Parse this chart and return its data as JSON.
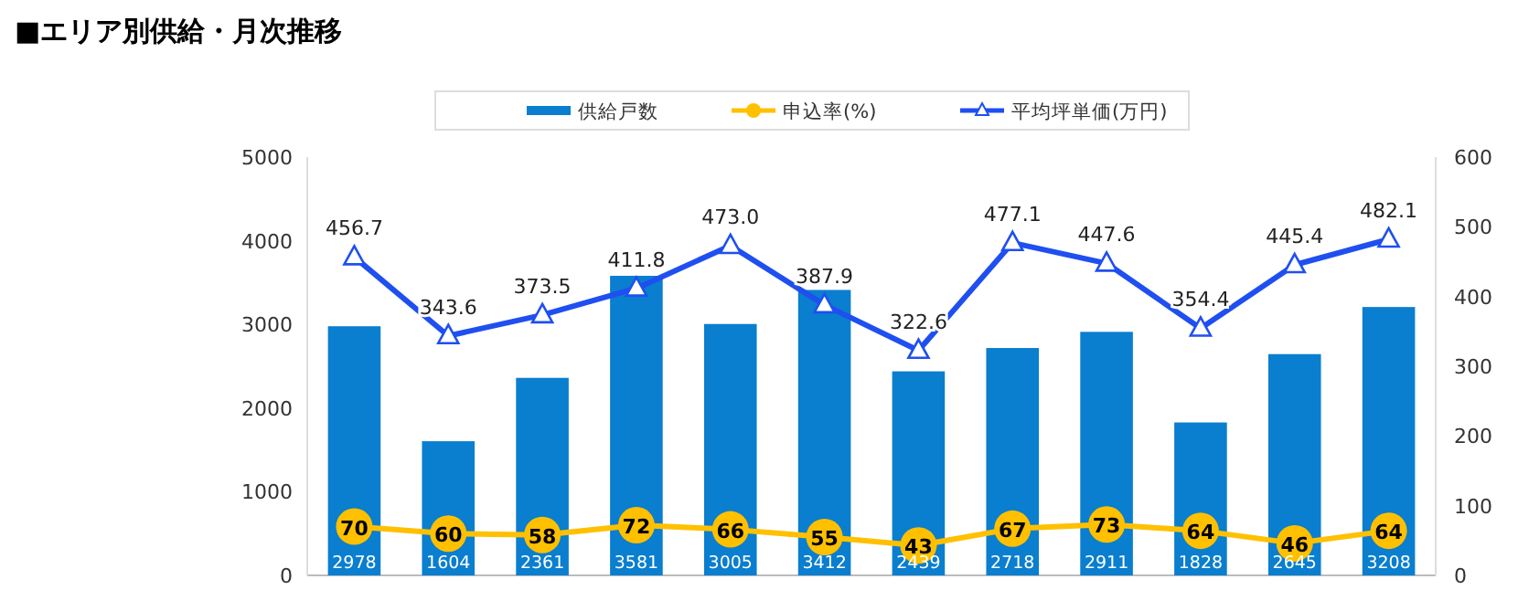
{
  "chart_data": {
    "type": "bar",
    "title": "■エリア別供給・月次推移",
    "categories": [
      null,
      null,
      null,
      null,
      null,
      null,
      null,
      null,
      null,
      null,
      null,
      null
    ],
    "series": [
      {
        "name": "供給戸数",
        "color": "#0a7ecf",
        "values": [
          2978,
          1604,
          2361,
          3581,
          3005,
          3412,
          2439,
          2718,
          2911,
          1828,
          2645,
          3208
        ]
      },
      {
        "name": "申込率(%)",
        "type": "line",
        "axis": "y2",
        "marker": "circle",
        "color": "#ffc000",
        "values": [
          70,
          60,
          58,
          72,
          66,
          55,
          43,
          67,
          73,
          64,
          46,
          64
        ]
      },
      {
        "name": "平均坪単価(万円)",
        "type": "line",
        "axis": "y2",
        "marker": "triangle",
        "color": "#1f4ff0",
        "values": [
          456.7,
          343.6,
          373.5,
          411.8,
          473.0,
          387.9,
          322.6,
          477.1,
          447.6,
          354.4,
          445.4,
          482.1
        ],
        "value_labels": [
          "456.7",
          "343.6",
          "373.5",
          "411.8",
          "473.0",
          "387.9",
          "322.6",
          "477.1",
          "447.6",
          "354.4",
          "445.4",
          "482.1"
        ]
      }
    ],
    "ylim": [
      0,
      5000
    ],
    "yticks": [
      0,
      1000,
      2000,
      3000,
      4000,
      5000
    ],
    "y2lim": [
      0,
      600
    ],
    "y2ticks": [
      0,
      100,
      200,
      300,
      400,
      500,
      600
    ],
    "legend": "top",
    "data_labels": true
  }
}
